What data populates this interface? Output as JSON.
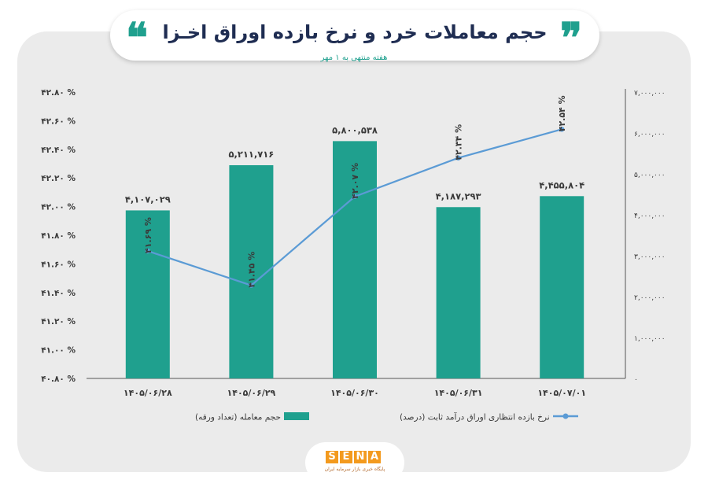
{
  "header": {
    "title": "حجم معاملات خرد و نرخ بازده اوراق اخـزا",
    "subtitle": "هفته منتهی به ۱ مهر",
    "quote_left": "❝",
    "quote_right": "❞"
  },
  "colors": {
    "bar": "#1fa08e",
    "line": "#5b9bd5",
    "title": "#1f2d52",
    "accent": "#1fa08e",
    "logo": "#f39a1e"
  },
  "chart_data": {
    "type": "bar",
    "categories": [
      "۱۴۰۵/۰۶/۲۸",
      "۱۴۰۵/۰۶/۲۹",
      "۱۴۰۵/۰۶/۳۰",
      "۱۴۰۵/۰۶/۳۱",
      "۱۴۰۵/۰۷/۰۱"
    ],
    "series": [
      {
        "name": "حجم معامله (تعداد ورقه)",
        "type": "bar",
        "axis": "right",
        "values": [
          4107029,
          5211716,
          5800538,
          4187293,
          4455804
        ],
        "labels": [
          "۴,۱۰۷,۰۲۹",
          "۵,۲۱۱,۷۱۶",
          "۵,۸۰۰,۵۳۸",
          "۴,۱۸۷,۲۹۳",
          "۴,۴۵۵,۸۰۴"
        ]
      },
      {
        "name": "نرخ بازده انتظاری اوراق درآمد ثابت (درصد)",
        "type": "line",
        "axis": "left",
        "values": [
          41.69,
          41.45,
          42.07,
          42.34,
          42.54
        ],
        "labels": [
          "۴۱.۶۹ %",
          "۴۱.۴۵ %",
          "۴۲.۰۷ %",
          "۴۲.۳۴ %",
          "۴۲.۵۴ %"
        ]
      }
    ],
    "left_axis": {
      "ylim": [
        40.8,
        42.8
      ],
      "ticks": [
        40.8,
        41.0,
        41.2,
        41.4,
        41.6,
        41.8,
        42.0,
        42.2,
        42.4,
        42.6,
        42.8
      ],
      "tick_labels": [
        "۴۰.۸۰ %",
        "۴۱.۰۰ %",
        "۴۱.۲۰ %",
        "۴۱.۴۰ %",
        "۴۱.۶۰ %",
        "۴۱.۸۰ %",
        "۴۲.۰۰ %",
        "۴۲.۲۰ %",
        "۴۲.۴۰ %",
        "۴۲.۶۰ %",
        "۴۲.۸۰ %"
      ]
    },
    "right_axis": {
      "ylim": [
        0,
        7000000
      ],
      "ticks": [
        0,
        1000000,
        2000000,
        3000000,
        4000000,
        5000000,
        6000000,
        7000000
      ],
      "tick_labels": [
        "۰",
        "۱,۰۰۰,۰۰۰",
        "۲,۰۰۰,۰۰۰",
        "۳,۰۰۰,۰۰۰",
        "۴,۰۰۰,۰۰۰",
        "۵,۰۰۰,۰۰۰",
        "۶,۰۰۰,۰۰۰",
        "۷,۰۰۰,۰۰۰"
      ]
    },
    "grid": false,
    "legend_position": "bottom"
  },
  "legend": {
    "bar_label": "حجم معامله (تعداد ورقه)",
    "line_label": "نرخ بازده انتظاری اوراق درآمد ثابت (درصد)"
  },
  "logo": {
    "letters": [
      "S",
      "E",
      "N",
      "A"
    ],
    "tagline": "پایگاه خبری بازار سرمایه ایران"
  }
}
